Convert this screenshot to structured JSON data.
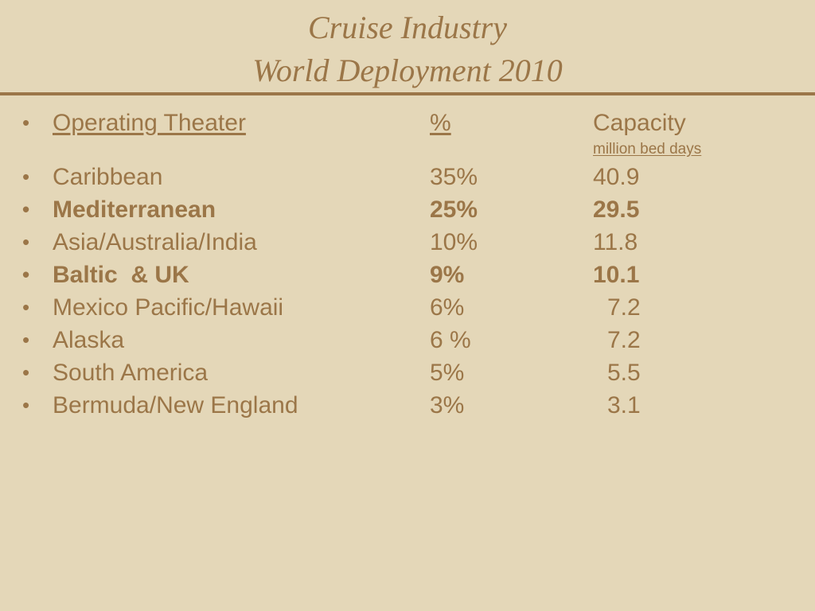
{
  "title": {
    "line1": "Cruise Industry",
    "line2": "World Deployment 2010"
  },
  "header": {
    "theater": "Operating Theater",
    "percent": "%",
    "capacity": "Capacity",
    "capacity_unit": "million bed days"
  },
  "rows": [
    {
      "theater": "Caribbean",
      "percent": "35%",
      "capacity": "40.9",
      "bold": false
    },
    {
      "theater": "Mediterranean",
      "percent": "25%",
      "capacity": "29.5",
      "bold": true
    },
    {
      "theater": "Asia/Australia/India",
      "percent": "10%",
      "capacity": "11.8",
      "bold": false
    },
    {
      "theater": "Baltic  & UK",
      "percent": "9%",
      "capacity": "10.1",
      "bold": true
    },
    {
      "theater": "Mexico Pacific/Hawaii",
      "percent": "6%",
      "capacity": "7.2",
      "bold": false
    },
    {
      "theater": "Alaska",
      "percent": "6 %",
      "capacity": "7.2",
      "bold": false
    },
    {
      "theater": "South America",
      "percent": "5%",
      "capacity": "5.5",
      "bold": false
    },
    {
      "theater": "Bermuda/New England",
      "percent": "3%",
      "capacity": "3.1",
      "bold": false
    }
  ],
  "colors": {
    "background": "#e4d7b8",
    "text": "#9b7648"
  }
}
